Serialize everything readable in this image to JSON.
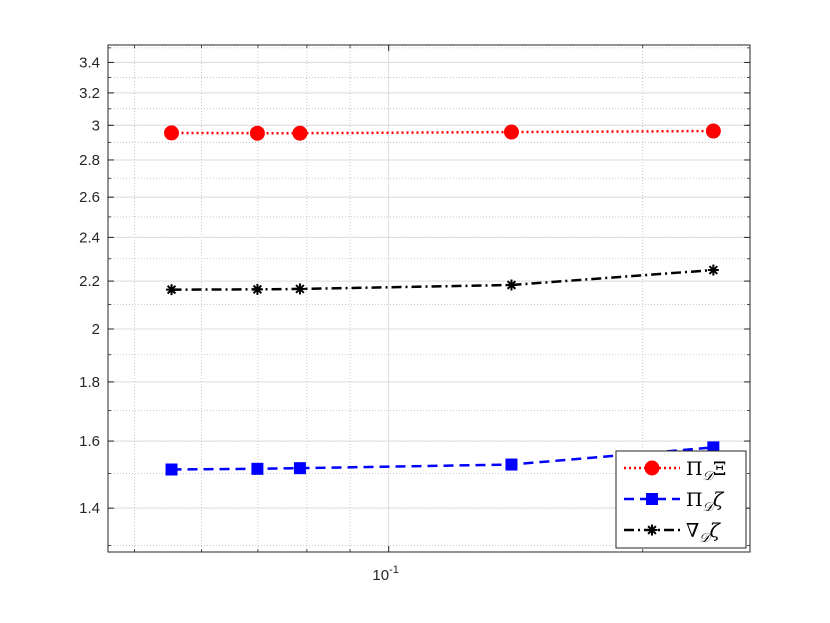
{
  "chart_data": {
    "type": "line",
    "xscale": "log",
    "yscale": "log",
    "xlim": [
      0.0465,
      0.268
    ],
    "ylim": [
      1.283,
      3.52
    ],
    "x_ticks": [
      {
        "value": 0.1,
        "label": "10",
        "exponent": "-1"
      }
    ],
    "y_ticks": [
      1.4,
      1.6,
      1.8,
      2,
      2.2,
      2.4,
      2.6,
      2.8,
      3,
      3.2,
      3.4
    ],
    "y_tick_labels": [
      "1.4",
      "1.6",
      "1.8",
      "2",
      "2.2",
      "2.4",
      "2.6",
      "2.8",
      "3",
      "3.2",
      "3.4"
    ],
    "grid": true,
    "legend_position": "bottom-right",
    "series": [
      {
        "name": "Π𝒟Ξ",
        "name_parts": {
          "base": "Π",
          "sub": "𝒟",
          "tail": "Ξ"
        },
        "color": "#ff0000",
        "line_style": "dotted",
        "marker": "circle",
        "x": [
          0.0553,
          0.0699,
          0.0785,
          0.1398,
          0.2425
        ],
        "y": [
          2.955,
          2.953,
          2.953,
          2.96,
          2.966
        ]
      },
      {
        "name": "Π𝒟ζ",
        "name_parts": {
          "base": "Π",
          "sub": "𝒟",
          "tail": "ζ"
        },
        "color": "#0000ff",
        "line_style": "dashed",
        "marker": "square",
        "x": [
          0.0553,
          0.0699,
          0.0785,
          0.1398,
          0.2425
        ],
        "y": [
          1.512,
          1.514,
          1.516,
          1.527,
          1.58
        ]
      },
      {
        "name": "∇𝒟ζ",
        "name_parts": {
          "base": "∇",
          "sub": "𝒟",
          "tail": "ζ"
        },
        "color": "#000000",
        "line_style": "dashdot",
        "marker": "asterisk",
        "x": [
          0.0553,
          0.0699,
          0.0785,
          0.1398,
          0.2425
        ],
        "y": [
          2.163,
          2.164,
          2.166,
          2.183,
          2.249
        ]
      }
    ]
  }
}
